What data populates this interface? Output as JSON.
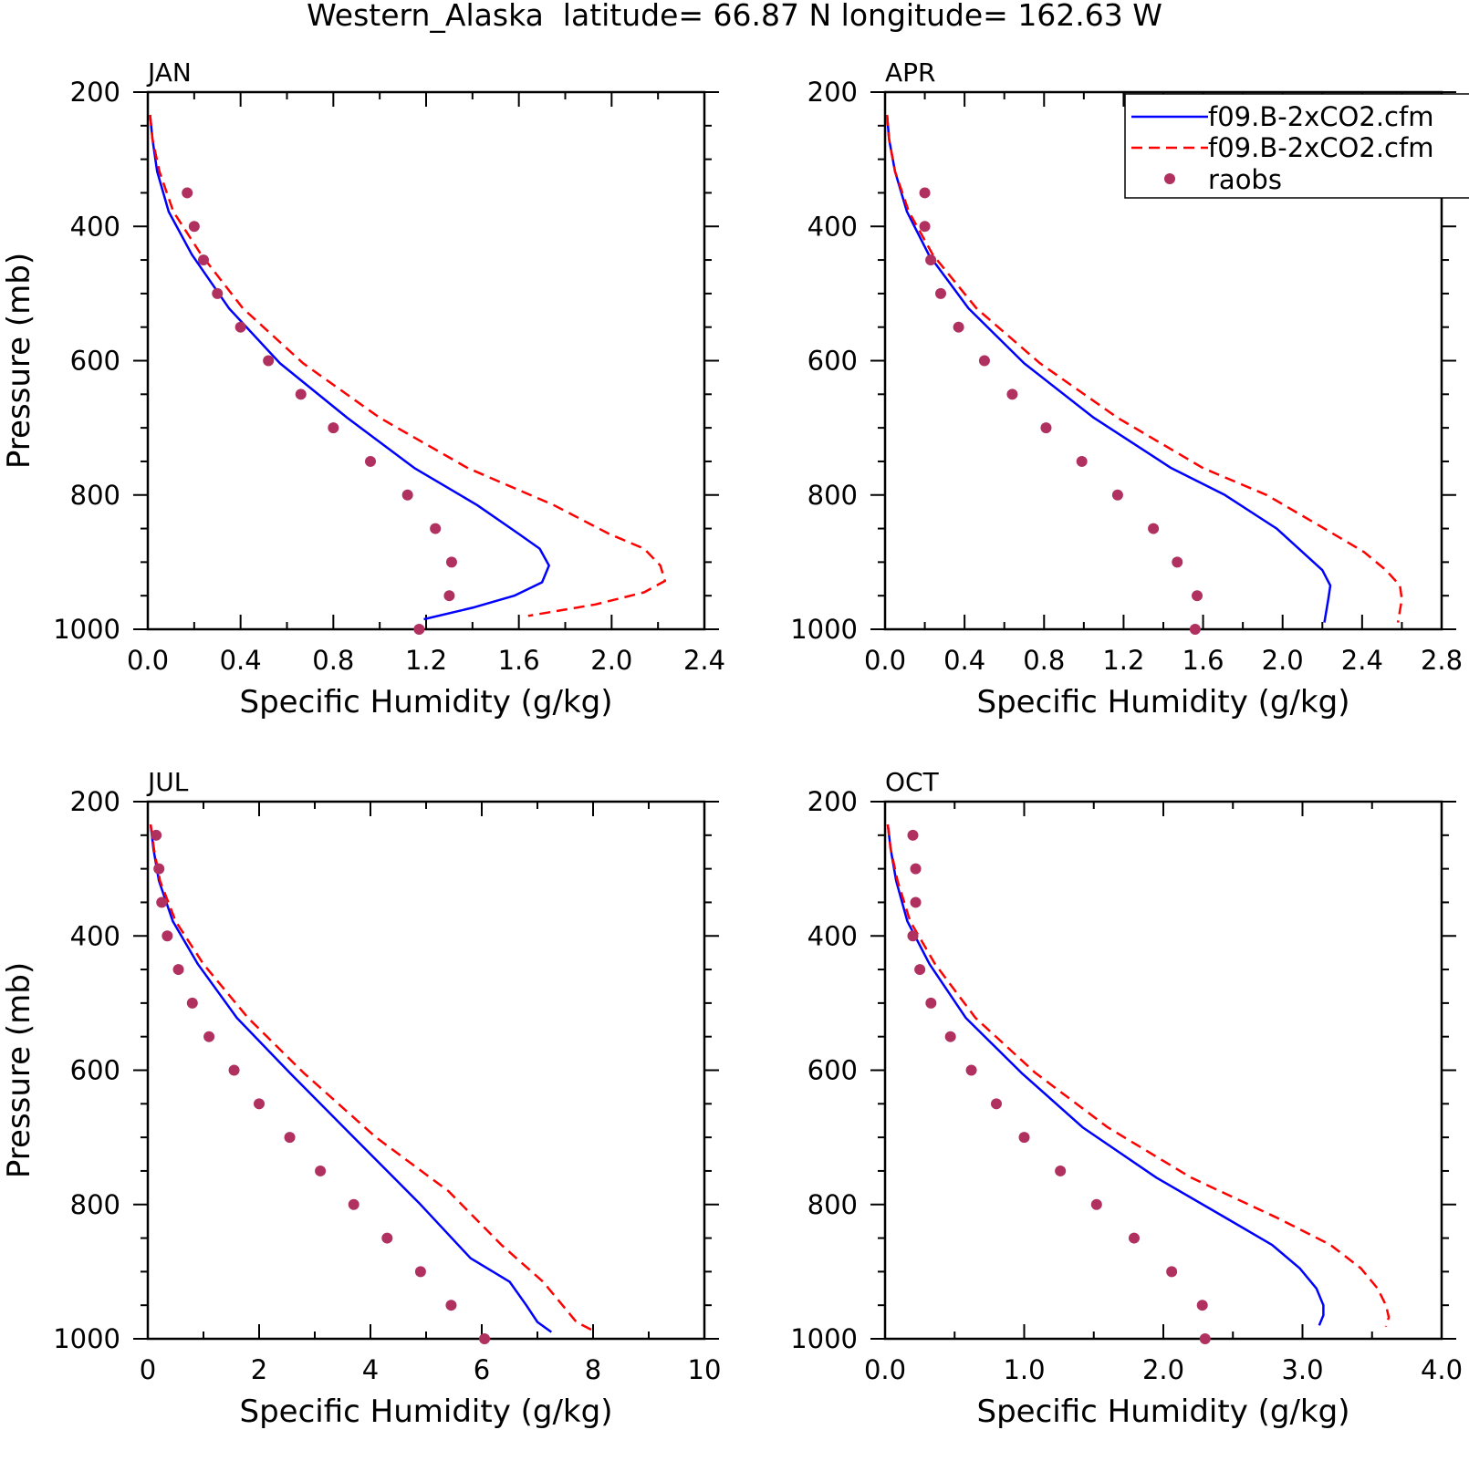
{
  "figure": {
    "title": "Western_Alaska  latitude= 66.87 N longitude= 162.63 W",
    "legend": {
      "placement": "top-right of APR panel",
      "entries": [
        {
          "label": "f09.B-2xCO2.cfm",
          "style": "solid",
          "color": "#0000ff"
        },
        {
          "label": "f09.B-2xCO2.cfm",
          "style": "dashed",
          "color": "#ff0000"
        },
        {
          "label": "raobs",
          "style": "marker",
          "color": "#b03060"
        }
      ]
    }
  },
  "chart_data": [
    {
      "type": "line",
      "panel": "JAN",
      "xlabel": "Specific Humidity (g/kg)",
      "ylabel": "Pressure (mb)",
      "xlim": [
        0,
        2.4
      ],
      "xticks": [
        0,
        0.4,
        0.8,
        1.2,
        1.6,
        2.0,
        2.4
      ],
      "xtick_labels": [
        "0.0",
        "0.4",
        "0.8",
        "1.2",
        "1.6",
        "2.0",
        "2.4"
      ],
      "ylim": [
        200,
        1000
      ],
      "yticks": [
        200,
        400,
        600,
        800,
        1000
      ],
      "y_inverted": true,
      "series": [
        {
          "name": "f09.B-2xCO2.cfm",
          "style": "solid",
          "color": "#0000ff",
          "points": [
            [
              0.01,
              234
            ],
            [
              0.02,
              270
            ],
            [
              0.04,
              318
            ],
            [
              0.09,
              378
            ],
            [
              0.19,
              442
            ],
            [
              0.35,
              522
            ],
            [
              0.57,
              604
            ],
            [
              0.86,
              685
            ],
            [
              1.15,
              760
            ],
            [
              1.42,
              815
            ],
            [
              1.6,
              858
            ],
            [
              1.69,
              880
            ],
            [
              1.73,
              905
            ],
            [
              1.7,
              930
            ],
            [
              1.58,
              950
            ],
            [
              1.4,
              968
            ],
            [
              1.19,
              985
            ]
          ]
        },
        {
          "name": "f09.B-2xCO2.cfm",
          "style": "dashed",
          "color": "#ff0000",
          "points": [
            [
              0.01,
              234
            ],
            [
              0.02,
              270
            ],
            [
              0.05,
              318
            ],
            [
              0.11,
              378
            ],
            [
              0.23,
              442
            ],
            [
              0.41,
              522
            ],
            [
              0.67,
              604
            ],
            [
              1.0,
              685
            ],
            [
              1.38,
              760
            ],
            [
              1.75,
              815
            ],
            [
              1.99,
              858
            ],
            [
              2.14,
              880
            ],
            [
              2.21,
              905
            ],
            [
              2.23,
              928
            ],
            [
              2.14,
              945
            ],
            [
              1.93,
              963
            ],
            [
              1.64,
              980
            ]
          ]
        },
        {
          "name": "raobs",
          "style": "marker",
          "color": "#b03060",
          "points": [
            [
              0.17,
              350
            ],
            [
              0.2,
              400
            ],
            [
              0.24,
              450
            ],
            [
              0.3,
              500
            ],
            [
              0.4,
              550
            ],
            [
              0.52,
              600
            ],
            [
              0.66,
              650
            ],
            [
              0.8,
              700
            ],
            [
              0.96,
              750
            ],
            [
              1.12,
              800
            ],
            [
              1.24,
              850
            ],
            [
              1.31,
              900
            ],
            [
              1.3,
              950
            ],
            [
              1.17,
              1000
            ]
          ]
        }
      ]
    },
    {
      "type": "line",
      "panel": "APR",
      "xlabel": "Specific Humidity (g/kg)",
      "ylabel": "",
      "xlim": [
        0,
        2.8
      ],
      "xticks": [
        0,
        0.4,
        0.8,
        1.2,
        1.6,
        2.0,
        2.4,
        2.8
      ],
      "xtick_labels": [
        "0.0",
        "0.4",
        "0.8",
        "1.2",
        "1.6",
        "2.0",
        "2.4",
        "2.8"
      ],
      "ylim": [
        200,
        1000
      ],
      "yticks": [
        200,
        400,
        600,
        800,
        1000
      ],
      "y_inverted": true,
      "series": [
        {
          "name": "f09.B-2xCO2.cfm",
          "style": "solid",
          "color": "#0000ff",
          "points": [
            [
              0.01,
              234
            ],
            [
              0.02,
              270
            ],
            [
              0.05,
              318
            ],
            [
              0.11,
              378
            ],
            [
              0.22,
              442
            ],
            [
              0.42,
              522
            ],
            [
              0.7,
              604
            ],
            [
              1.05,
              685
            ],
            [
              1.44,
              760
            ],
            [
              1.71,
              800
            ],
            [
              1.97,
              850
            ],
            [
              2.1,
              885
            ],
            [
              2.2,
              912
            ],
            [
              2.24,
              935
            ],
            [
              2.23,
              955
            ],
            [
              2.21,
              990
            ]
          ]
        },
        {
          "name": "f09.B-2xCO2.cfm",
          "style": "dashed",
          "color": "#ff0000",
          "points": [
            [
              0.01,
              234
            ],
            [
              0.02,
              270
            ],
            [
              0.05,
              318
            ],
            [
              0.12,
              378
            ],
            [
              0.24,
              442
            ],
            [
              0.46,
              522
            ],
            [
              0.78,
              604
            ],
            [
              1.17,
              685
            ],
            [
              1.6,
              760
            ],
            [
              1.92,
              800
            ],
            [
              2.21,
              850
            ],
            [
              2.41,
              885
            ],
            [
              2.52,
              912
            ],
            [
              2.59,
              935
            ],
            [
              2.6,
              955
            ],
            [
              2.58,
              990
            ]
          ]
        },
        {
          "name": "raobs",
          "style": "marker",
          "color": "#b03060",
          "points": [
            [
              0.2,
              350
            ],
            [
              0.2,
              400
            ],
            [
              0.23,
              450
            ],
            [
              0.28,
              500
            ],
            [
              0.37,
              550
            ],
            [
              0.5,
              600
            ],
            [
              0.64,
              650
            ],
            [
              0.81,
              700
            ],
            [
              0.99,
              750
            ],
            [
              1.17,
              800
            ],
            [
              1.35,
              850
            ],
            [
              1.47,
              900
            ],
            [
              1.57,
              950
            ],
            [
              1.56,
              1000
            ]
          ]
        }
      ]
    },
    {
      "type": "line",
      "panel": "JUL",
      "xlabel": "Specific Humidity (g/kg)",
      "ylabel": "Pressure (mb)",
      "xlim": [
        0,
        10
      ],
      "xticks": [
        0,
        2,
        4,
        6,
        8,
        10
      ],
      "xtick_labels": [
        "0",
        "2",
        "4",
        "6",
        "8",
        "10"
      ],
      "ylim": [
        200,
        1000
      ],
      "yticks": [
        200,
        400,
        600,
        800,
        1000
      ],
      "y_inverted": true,
      "series": [
        {
          "name": "f09.B-2xCO2.cfm",
          "style": "solid",
          "color": "#0000ff",
          "points": [
            [
              0.05,
              234
            ],
            [
              0.1,
              270
            ],
            [
              0.2,
              318
            ],
            [
              0.45,
              378
            ],
            [
              0.9,
              442
            ],
            [
              1.6,
              522
            ],
            [
              2.55,
              604
            ],
            [
              3.7,
              700
            ],
            [
              4.9,
              800
            ],
            [
              5.8,
              880
            ],
            [
              6.5,
              915
            ],
            [
              6.8,
              950
            ],
            [
              7.0,
              975
            ],
            [
              7.25,
              990
            ]
          ]
        },
        {
          "name": "f09.B-2xCO2.cfm",
          "style": "dashed",
          "color": "#ff0000",
          "points": [
            [
              0.05,
              234
            ],
            [
              0.11,
              270
            ],
            [
              0.22,
              318
            ],
            [
              0.5,
              378
            ],
            [
              1.0,
              442
            ],
            [
              1.8,
              522
            ],
            [
              2.8,
              604
            ],
            [
              4.1,
              700
            ],
            [
              5.4,
              780
            ],
            [
              6.35,
              860
            ],
            [
              7.1,
              915
            ],
            [
              7.45,
              950
            ],
            [
              7.7,
              975
            ],
            [
              8.05,
              990
            ]
          ]
        },
        {
          "name": "raobs",
          "style": "marker",
          "color": "#b03060",
          "points": [
            [
              0.15,
              250
            ],
            [
              0.2,
              300
            ],
            [
              0.25,
              350
            ],
            [
              0.35,
              400
            ],
            [
              0.55,
              450
            ],
            [
              0.8,
              500
            ],
            [
              1.1,
              550
            ],
            [
              1.55,
              600
            ],
            [
              2.0,
              650
            ],
            [
              2.55,
              700
            ],
            [
              3.1,
              750
            ],
            [
              3.7,
              800
            ],
            [
              4.3,
              850
            ],
            [
              4.9,
              900
            ],
            [
              5.45,
              950
            ],
            [
              6.05,
              1000
            ]
          ]
        }
      ]
    },
    {
      "type": "line",
      "panel": "OCT",
      "xlabel": "Specific Humidity (g/kg)",
      "ylabel": "",
      "xlim": [
        0,
        4.0
      ],
      "xticks": [
        0,
        1.0,
        2.0,
        3.0,
        4.0
      ],
      "xtick_labels": [
        "0.0",
        "1.0",
        "2.0",
        "3.0",
        "4.0"
      ],
      "ylim": [
        200,
        1000
      ],
      "yticks": [
        200,
        400,
        600,
        800,
        1000
      ],
      "y_inverted": true,
      "series": [
        {
          "name": "f09.B-2xCO2.cfm",
          "style": "solid",
          "color": "#0000ff",
          "points": [
            [
              0.02,
              234
            ],
            [
              0.04,
              270
            ],
            [
              0.08,
              318
            ],
            [
              0.16,
              378
            ],
            [
              0.32,
              442
            ],
            [
              0.58,
              522
            ],
            [
              0.98,
              604
            ],
            [
              1.42,
              685
            ],
            [
              1.95,
              760
            ],
            [
              2.45,
              820
            ],
            [
              2.78,
              860
            ],
            [
              2.98,
              895
            ],
            [
              3.1,
              925
            ],
            [
              3.15,
              950
            ],
            [
              3.15,
              965
            ],
            [
              3.12,
              980
            ]
          ]
        },
        {
          "name": "f09.B-2xCO2.cfm",
          "style": "dashed",
          "color": "#ff0000",
          "points": [
            [
              0.02,
              234
            ],
            [
              0.04,
              270
            ],
            [
              0.09,
              318
            ],
            [
              0.18,
              378
            ],
            [
              0.36,
              442
            ],
            [
              0.65,
              522
            ],
            [
              1.08,
              604
            ],
            [
              1.6,
              685
            ],
            [
              2.2,
              760
            ],
            [
              2.82,
              820
            ],
            [
              3.2,
              860
            ],
            [
              3.42,
              895
            ],
            [
              3.54,
              925
            ],
            [
              3.6,
              950
            ],
            [
              3.62,
              968
            ],
            [
              3.6,
              982
            ]
          ]
        },
        {
          "name": "raobs",
          "style": "marker",
          "color": "#b03060",
          "points": [
            [
              0.2,
              250
            ],
            [
              0.22,
              300
            ],
            [
              0.22,
              350
            ],
            [
              0.2,
              400
            ],
            [
              0.25,
              450
            ],
            [
              0.33,
              500
            ],
            [
              0.47,
              550
            ],
            [
              0.62,
              600
            ],
            [
              0.8,
              650
            ],
            [
              1.0,
              700
            ],
            [
              1.26,
              750
            ],
            [
              1.52,
              800
            ],
            [
              1.79,
              850
            ],
            [
              2.06,
              900
            ],
            [
              2.28,
              950
            ],
            [
              2.3,
              1000
            ]
          ]
        }
      ]
    }
  ]
}
